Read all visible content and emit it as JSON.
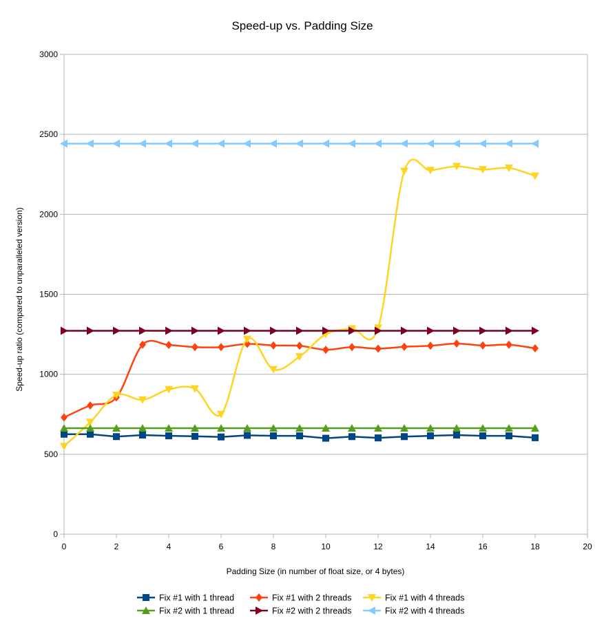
{
  "chart_data": {
    "type": "line",
    "title": "Speed-up vs. Padding Size",
    "xlabel": "Padding Size (in number of float size, or 4 bytes)",
    "ylabel": "Speed-up ratio (compared to unparalleled version)",
    "xlim": [
      0,
      20
    ],
    "ylim": [
      0,
      3000
    ],
    "x_ticks": [
      0,
      2,
      4,
      6,
      8,
      10,
      12,
      14,
      16,
      18,
      20
    ],
    "y_ticks": [
      0,
      500,
      1000,
      1500,
      2000,
      2500,
      3000
    ],
    "grid": "horizontal",
    "legend_position": "bottom",
    "x": [
      0,
      1,
      2,
      3,
      4,
      5,
      6,
      7,
      8,
      9,
      10,
      11,
      12,
      13,
      14,
      15,
      16,
      17,
      18
    ],
    "series": [
      {
        "name": "Fix #1 with 1 thread",
        "color": "#004586",
        "marker": "square",
        "smooth": false,
        "values": [
          625,
          625,
          610,
          620,
          615,
          612,
          608,
          618,
          615,
          615,
          600,
          610,
          602,
          610,
          615,
          620,
          615,
          615,
          603
        ]
      },
      {
        "name": "Fix #1 with 2 threads",
        "color": "#ff420e",
        "marker": "diamond",
        "smooth": true,
        "values": [
          730,
          805,
          855,
          1185,
          1183,
          1170,
          1170,
          1190,
          1180,
          1178,
          1153,
          1170,
          1160,
          1172,
          1178,
          1192,
          1180,
          1185,
          1162
        ]
      },
      {
        "name": "Fix #1 with 4 threads",
        "color": "#ffd320",
        "marker": "triangle-down",
        "smooth": true,
        "values": [
          550,
          700,
          870,
          840,
          905,
          910,
          750,
          1220,
          1030,
          1110,
          1250,
          1285,
          1290,
          2270,
          2275,
          2300,
          2280,
          2290,
          2240
        ]
      },
      {
        "name": "Fix #2 with 1 thread",
        "color": "#579d1c",
        "marker": "triangle-up",
        "smooth": false,
        "values": [
          663,
          663,
          663,
          663,
          663,
          663,
          663,
          663,
          663,
          663,
          663,
          663,
          663,
          663,
          663,
          663,
          663,
          663,
          663
        ]
      },
      {
        "name": "Fix #2 with 2 threads",
        "color": "#7e0021",
        "marker": "triangle-right",
        "smooth": false,
        "values": [
          1272,
          1272,
          1272,
          1272,
          1272,
          1272,
          1272,
          1272,
          1272,
          1272,
          1272,
          1272,
          1272,
          1272,
          1272,
          1272,
          1272,
          1272,
          1272
        ]
      },
      {
        "name": "Fix #2 with 4 threads",
        "color": "#83caff",
        "marker": "triangle-left",
        "smooth": false,
        "values": [
          2442,
          2442,
          2442,
          2442,
          2442,
          2442,
          2442,
          2442,
          2442,
          2442,
          2442,
          2442,
          2442,
          2442,
          2442,
          2442,
          2442,
          2442,
          2442
        ]
      }
    ]
  }
}
